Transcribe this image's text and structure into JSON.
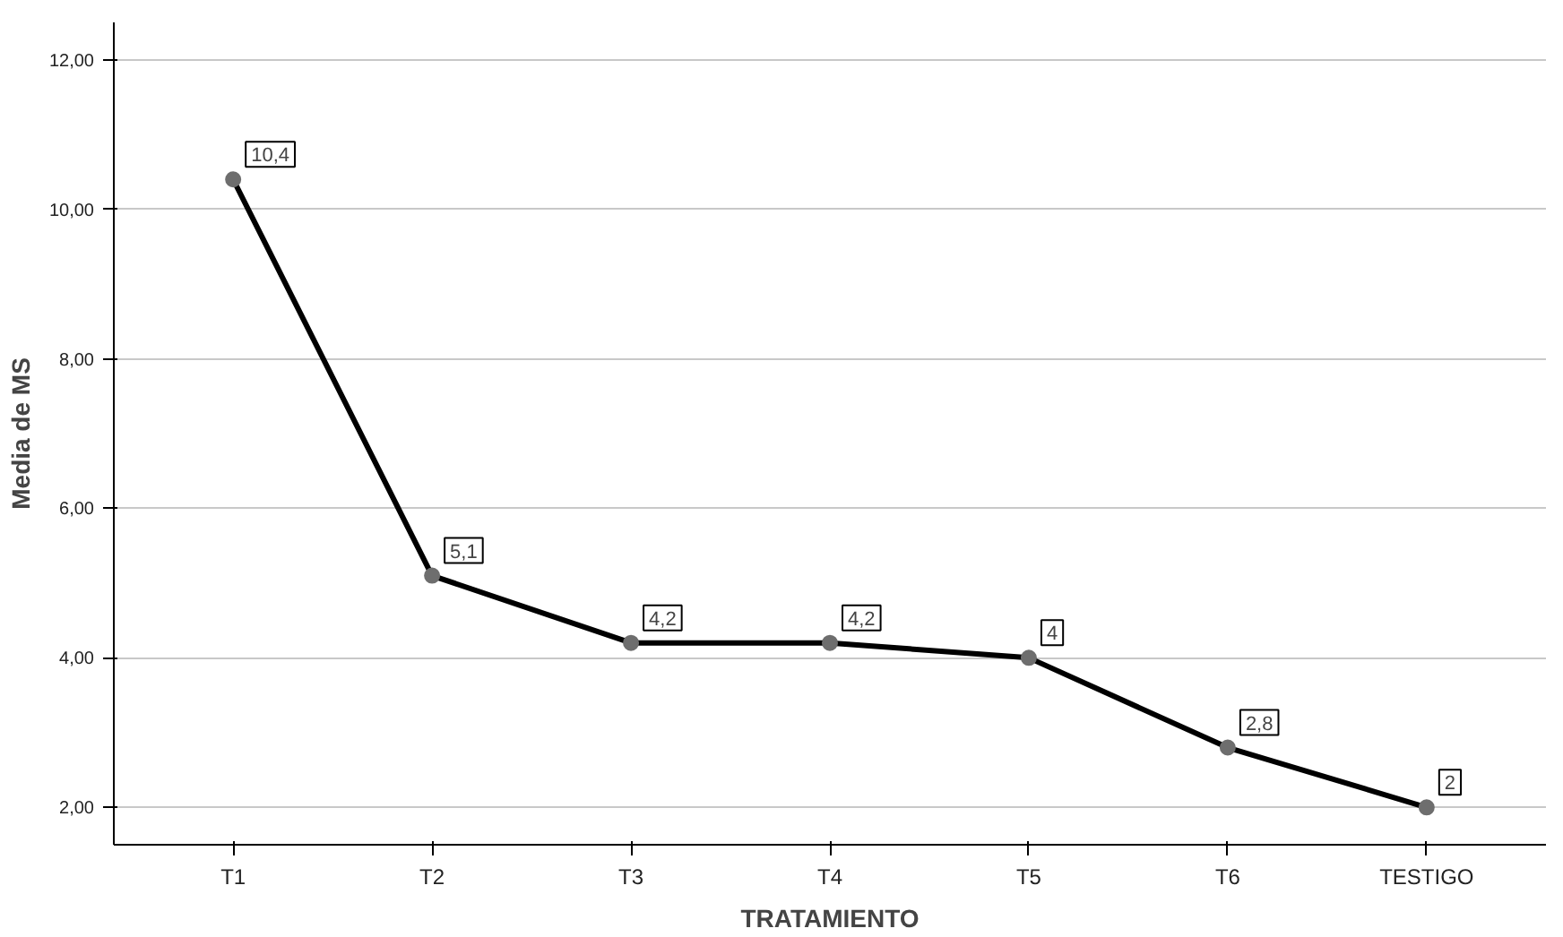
{
  "chart_data": {
    "type": "line",
    "xlabel": "TRATAMIENTO",
    "ylabel": "Media de MS",
    "categories": [
      "T1",
      "T2",
      "T3",
      "T4",
      "T5",
      "T6",
      "TESTIGO"
    ],
    "series": [
      {
        "color": "#000000",
        "values": [
          10.4,
          5.1,
          4.2,
          4.2,
          4,
          2.8,
          2
        ],
        "value_labels": [
          "10,4",
          "5,1",
          "4,2",
          "4,2",
          "4",
          "2,8",
          "2"
        ]
      }
    ],
    "ylim": [
      1.5,
      12.5
    ],
    "yticks": [
      {
        "value": 2,
        "label": "2,00"
      },
      {
        "value": 4,
        "label": "4,00"
      },
      {
        "value": 6,
        "label": "6,00"
      },
      {
        "value": 8,
        "label": "8,00"
      },
      {
        "value": 10,
        "label": "10,00"
      },
      {
        "value": 12,
        "label": "12,00"
      }
    ],
    "grid": "y",
    "marker": "circle",
    "line_style": "solid"
  }
}
